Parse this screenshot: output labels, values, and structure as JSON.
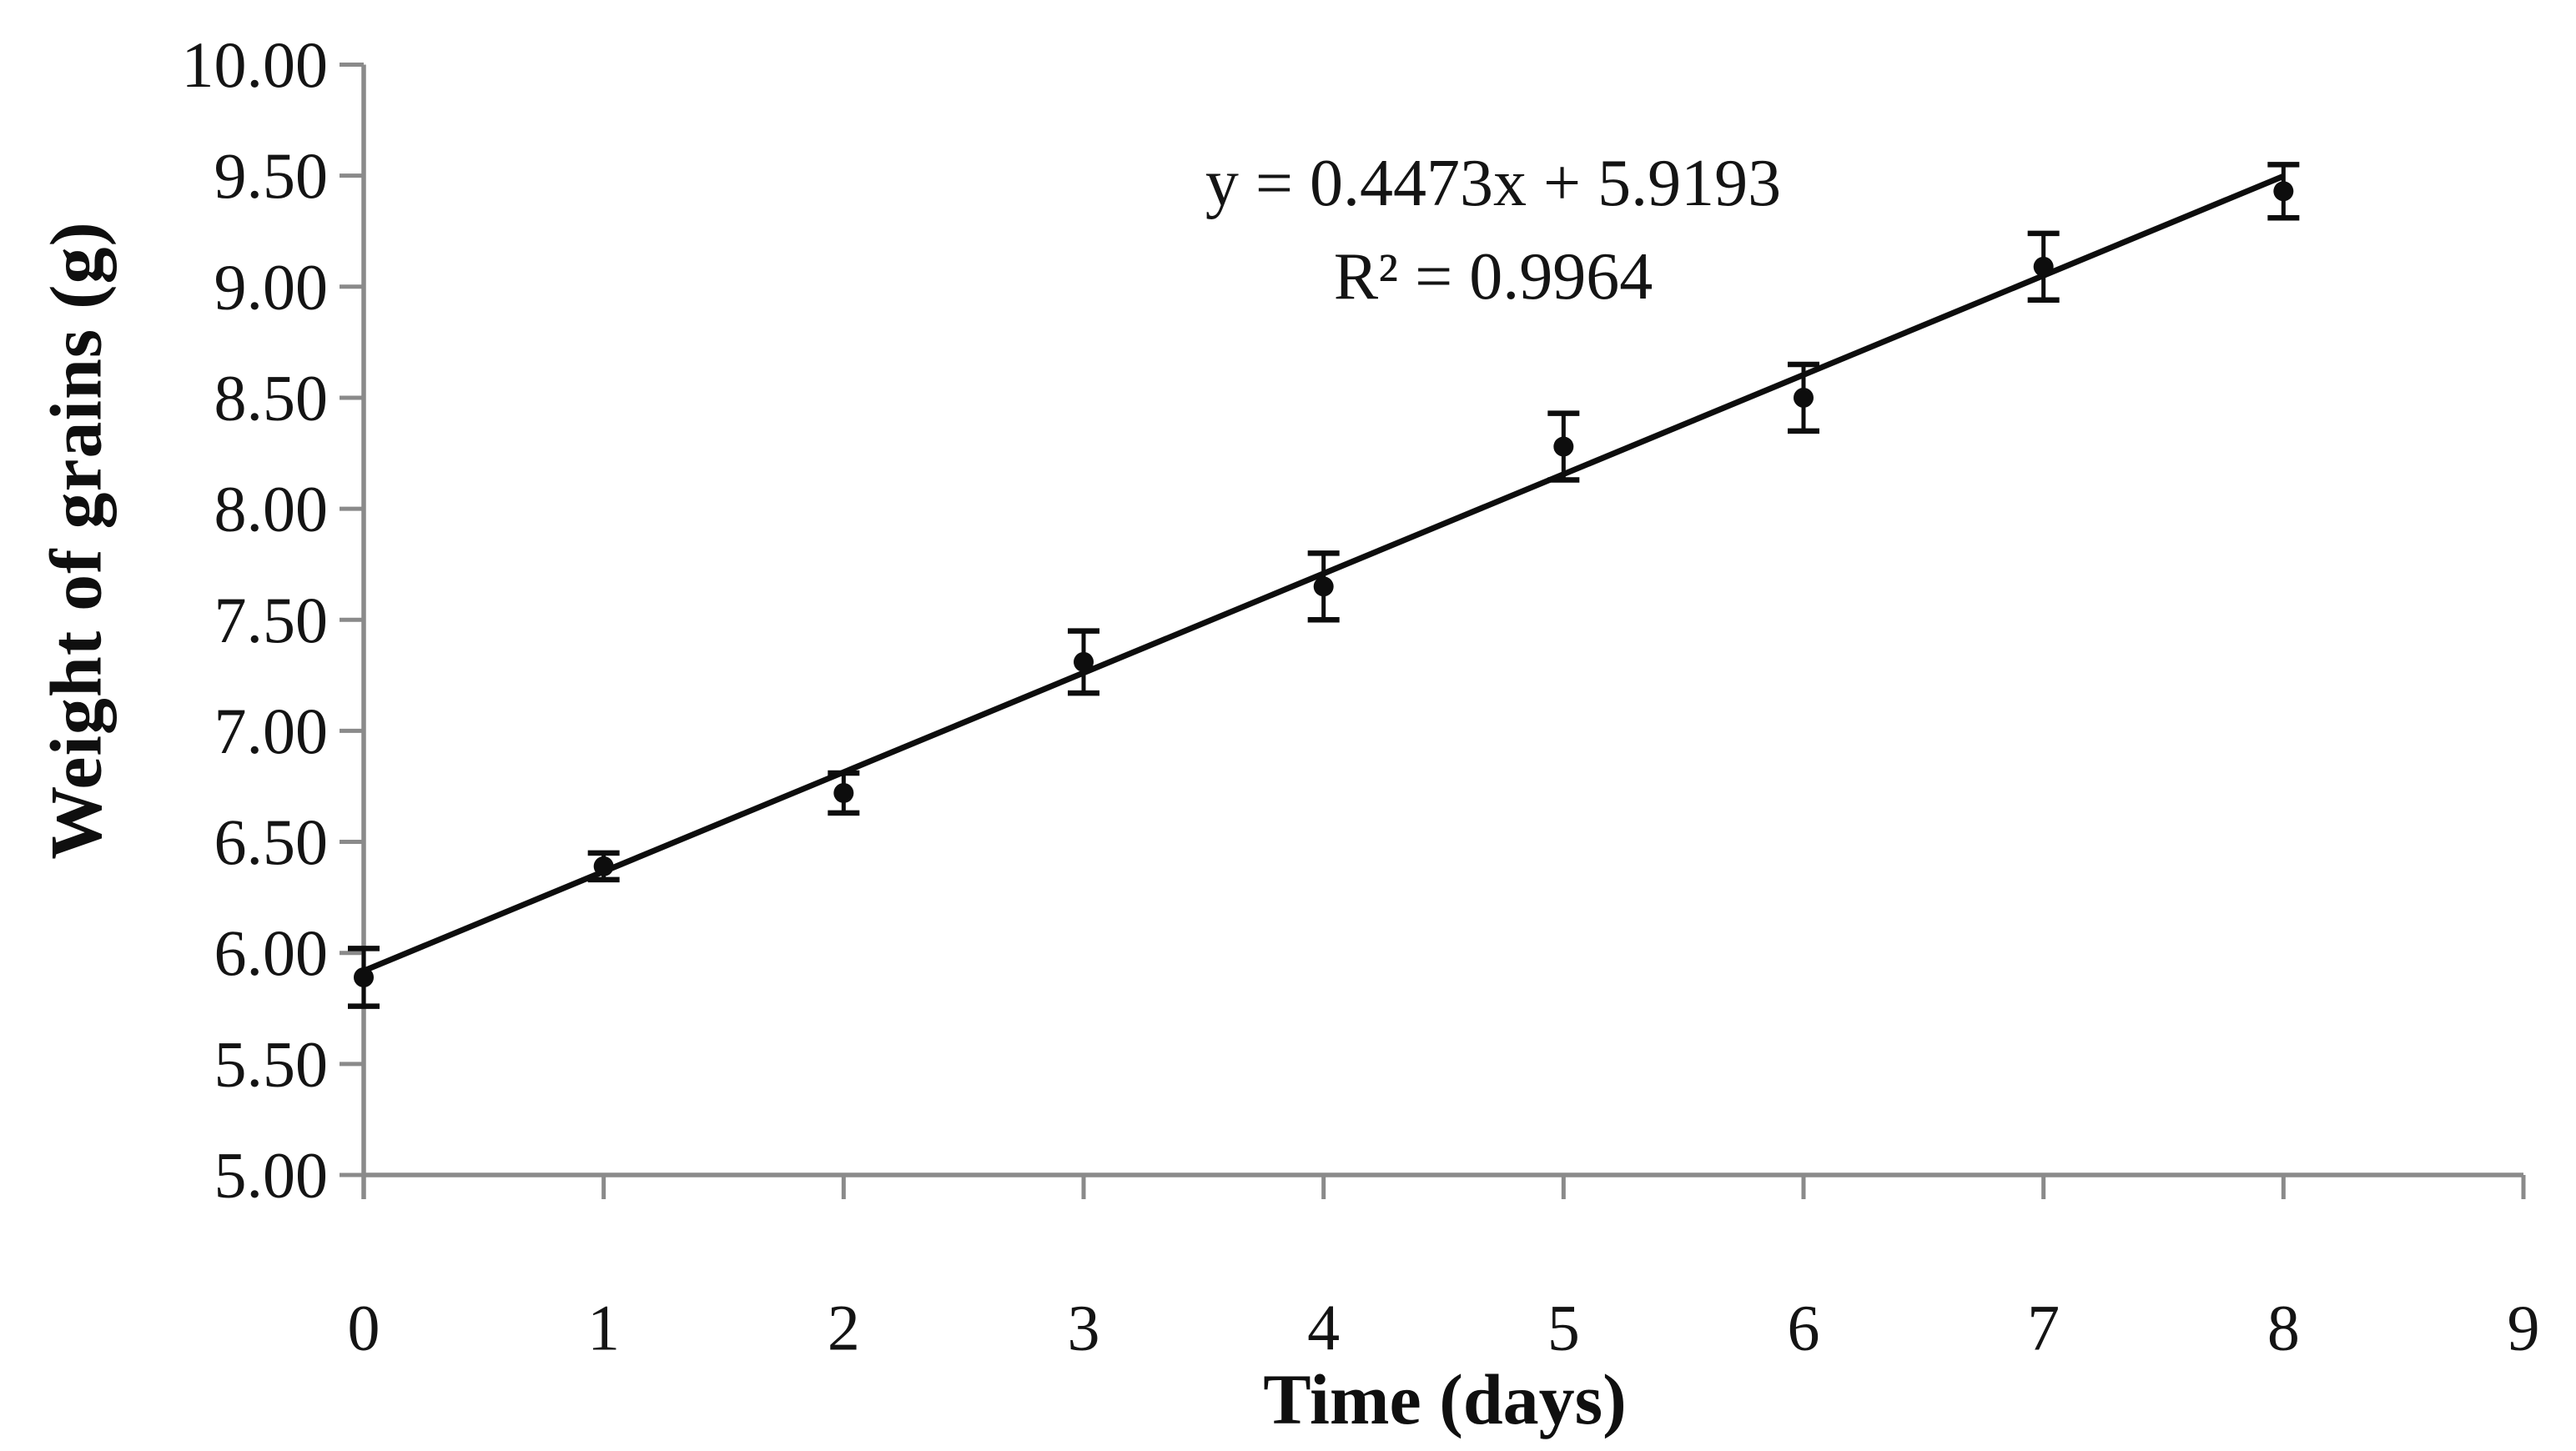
{
  "chart_data": {
    "type": "scatter",
    "title": "",
    "xlabel": "Time (days)",
    "ylabel": "Weight of grains (g)",
    "x": [
      0,
      1,
      2,
      3,
      4,
      5,
      6,
      7,
      8
    ],
    "y": [
      5.89,
      6.39,
      6.72,
      7.31,
      7.65,
      8.28,
      8.5,
      9.09,
      9.43
    ],
    "yerr": [
      0.13,
      0.06,
      0.09,
      0.14,
      0.15,
      0.15,
      0.15,
      0.15,
      0.12
    ],
    "trendline": {
      "slope": 0.4473,
      "intercept": 5.9193,
      "x_start": 0,
      "x_end": 8
    },
    "annotation": {
      "line1": "y = 0.4473x + 5.9193",
      "line2": "R² = 0.9964"
    },
    "x_ticks": [
      "0",
      "1",
      "2",
      "3",
      "4",
      "5",
      "6",
      "7",
      "8",
      "9"
    ],
    "y_ticks": [
      "10.00",
      "9.50",
      "9.00",
      "8.50",
      "8.00",
      "7.50",
      "7.00",
      "6.50",
      "6.00",
      "5.50",
      "5.00"
    ],
    "xlim": [
      0,
      9
    ],
    "ylim": [
      5,
      10
    ],
    "grid": false,
    "legend": "none",
    "marker": "filled-circle",
    "colors": {
      "axis": "#8a8a8a",
      "series": "#0d0d0d",
      "text": "#141414"
    }
  }
}
